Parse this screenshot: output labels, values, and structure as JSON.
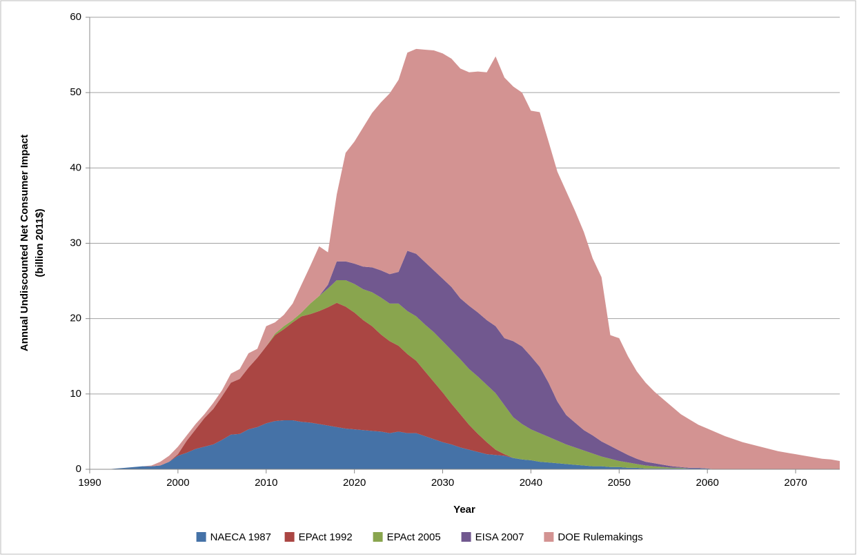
{
  "chart_data": {
    "type": "stacked_area",
    "xlabel": "Year",
    "ylabel": [
      "Annual Undiscounted Net Consumer Impact",
      "(billion 2011$)"
    ],
    "x": [
      1990,
      1991,
      1992,
      1993,
      1994,
      1995,
      1996,
      1997,
      1998,
      1999,
      2000,
      2001,
      2002,
      2003,
      2004,
      2005,
      2006,
      2007,
      2008,
      2009,
      2010,
      2011,
      2012,
      2013,
      2014,
      2015,
      2016,
      2017,
      2018,
      2019,
      2020,
      2021,
      2022,
      2023,
      2024,
      2025,
      2026,
      2027,
      2028,
      2029,
      2030,
      2031,
      2032,
      2033,
      2034,
      2035,
      2036,
      2037,
      2038,
      2039,
      2040,
      2041,
      2042,
      2043,
      2044,
      2045,
      2046,
      2047,
      2048,
      2049,
      2050,
      2051,
      2052,
      2053,
      2054,
      2055,
      2056,
      2057,
      2058,
      2059,
      2060,
      2061,
      2062,
      2063,
      2064,
      2065,
      2066,
      2067,
      2068,
      2069,
      2070,
      2071,
      2072,
      2073,
      2074,
      2075
    ],
    "series": [
      {
        "name": "NAECA 1987",
        "color": "#4572a7",
        "values": [
          0,
          0,
          0,
          0.1,
          0.2,
          0.3,
          0.4,
          0.4,
          0.5,
          1.0,
          1.8,
          2.2,
          2.7,
          3.0,
          3.3,
          3.9,
          4.6,
          4.7,
          5.3,
          5.6,
          6.1,
          6.4,
          6.5,
          6.5,
          6.3,
          6.2,
          6.0,
          5.8,
          5.6,
          5.4,
          5.3,
          5.2,
          5.1,
          5.0,
          4.8,
          5.0,
          4.8,
          4.8,
          4.4,
          4.0,
          3.6,
          3.3,
          2.9,
          2.6,
          2.3,
          2.0,
          1.9,
          1.8,
          1.5,
          1.3,
          1.2,
          1.0,
          0.9,
          0.8,
          0.7,
          0.6,
          0.5,
          0.4,
          0.4,
          0.3,
          0.3,
          0.2,
          0.2,
          0.1,
          0.1,
          0.1,
          0.1,
          0.1,
          0.1,
          0.1,
          0.1,
          0,
          0,
          0,
          0,
          0,
          0,
          0,
          0,
          0,
          0,
          0,
          0,
          0,
          0,
          0
        ]
      },
      {
        "name": "EPAct 1992",
        "color": "#aa4643",
        "values": [
          0,
          0,
          0,
          0,
          0,
          0,
          0,
          0,
          0,
          0,
          0.2,
          1.6,
          2.6,
          3.8,
          4.7,
          5.8,
          6.9,
          7.3,
          8.2,
          9.2,
          10.2,
          11.4,
          12.1,
          13.0,
          14.0,
          14.4,
          15.0,
          15.7,
          16.5,
          16.2,
          15.5,
          14.6,
          13.9,
          12.9,
          12.2,
          11.4,
          10.5,
          9.6,
          8.6,
          7.6,
          6.6,
          5.4,
          4.4,
          3.3,
          2.4,
          1.6,
          0.7,
          0.2,
          0,
          0,
          0,
          0,
          0,
          0,
          0,
          0,
          0,
          0,
          0,
          0,
          0,
          0,
          0,
          0,
          0,
          0,
          0,
          0,
          0,
          0,
          0,
          0,
          0,
          0,
          0,
          0,
          0,
          0,
          0,
          0,
          0,
          0,
          0,
          0,
          0,
          0
        ]
      },
      {
        "name": "EPAct 2005",
        "color": "#89a54e",
        "values": [
          0,
          0,
          0,
          0,
          0,
          0,
          0,
          0,
          0,
          0,
          0,
          0,
          0,
          0,
          0,
          0,
          0,
          0,
          0,
          0,
          0,
          0.2,
          0.4,
          0.3,
          0.5,
          1.4,
          2.0,
          2.5,
          3.0,
          3.5,
          3.8,
          4.1,
          4.5,
          4.9,
          5.0,
          5.6,
          5.7,
          5.9,
          6.2,
          6.6,
          6.8,
          7.1,
          7.3,
          7.4,
          7.6,
          7.6,
          7.5,
          6.5,
          5.4,
          4.7,
          4.1,
          3.8,
          3.4,
          3.0,
          2.6,
          2.3,
          2.0,
          1.7,
          1.3,
          1.1,
          0.8,
          0.7,
          0.5,
          0.4,
          0.3,
          0.2,
          0.1,
          0.1,
          0,
          0,
          0,
          0,
          0,
          0,
          0,
          0,
          0,
          0,
          0,
          0,
          0,
          0,
          0,
          0,
          0,
          0
        ]
      },
      {
        "name": "EISA 2007",
        "color": "#71588f",
        "values": [
          0,
          0,
          0,
          0,
          0,
          0,
          0,
          0,
          0,
          0,
          0,
          0,
          0,
          0,
          0,
          0,
          0,
          0,
          0,
          0,
          0,
          0,
          0,
          0,
          0,
          0,
          0,
          0.5,
          2.5,
          2.5,
          2.7,
          3.0,
          3.3,
          3.6,
          3.9,
          4.2,
          8.0,
          8.3,
          8.3,
          8.2,
          8.3,
          8.4,
          8.1,
          8.4,
          8.5,
          8.6,
          8.9,
          8.9,
          10.1,
          10.3,
          9.7,
          8.8,
          7.2,
          5.2,
          3.9,
          3.3,
          2.7,
          2.4,
          2.0,
          1.7,
          1.4,
          1.0,
          0.7,
          0.5,
          0.4,
          0.3,
          0.2,
          0.1,
          0.1,
          0.1,
          0,
          0,
          0,
          0,
          0,
          0,
          0,
          0,
          0,
          0,
          0,
          0,
          0,
          0,
          0,
          0
        ]
      },
      {
        "name": "DOE Rulemakings",
        "color": "#d39392",
        "values": [
          0,
          0,
          0,
          0,
          0,
          0,
          0,
          0.1,
          0.5,
          0.8,
          1.0,
          0.7,
          0.7,
          0.5,
          0.8,
          0.8,
          1.2,
          1.3,
          1.9,
          1.2,
          2.7,
          1.5,
          1.5,
          2.2,
          3.7,
          5.0,
          6.6,
          4.3,
          8.9,
          14.4,
          16.2,
          18.5,
          20.5,
          22.3,
          24.0,
          25.5,
          26.3,
          27.2,
          28.2,
          29.2,
          29.9,
          30.3,
          30.5,
          31.0,
          32.0,
          32.9,
          35.8,
          34.6,
          33.8,
          33.7,
          32.6,
          33.8,
          32.0,
          30.5,
          29.7,
          28.1,
          26.3,
          23.5,
          21.8,
          14.7,
          14.9,
          13.1,
          11.6,
          10.5,
          9.5,
          8.7,
          7.9,
          7.0,
          6.4,
          5.7,
          5.3,
          4.9,
          4.4,
          4.0,
          3.6,
          3.3,
          3.0,
          2.7,
          2.4,
          2.2,
          2.0,
          1.8,
          1.6,
          1.4,
          1.3,
          1.1
        ]
      }
    ],
    "xlim": [
      1990,
      2075
    ],
    "xticks": [
      1990,
      2000,
      2010,
      2020,
      2030,
      2040,
      2050,
      2060,
      2070
    ],
    "ylim": [
      0,
      60
    ],
    "yticks": [
      0,
      10,
      20,
      30,
      40,
      50,
      60
    ],
    "grid": true,
    "legend": "bottom"
  }
}
